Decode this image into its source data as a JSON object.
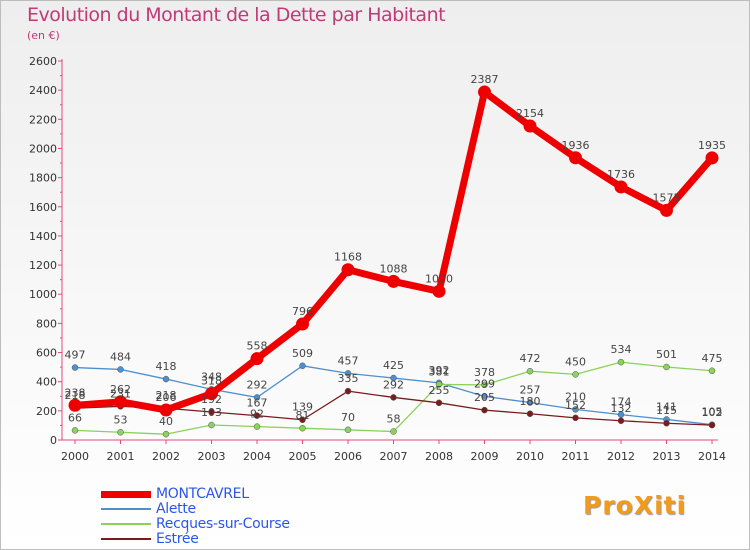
{
  "title": "Evolution du Montant de la Dette par Habitant",
  "subtitle": "(en €)",
  "logo": "ProXiti",
  "chart_data": {
    "type": "line",
    "categories": [
      "2000",
      "2001",
      "2002",
      "2003",
      "2004",
      "2005",
      "2006",
      "2007",
      "2008",
      "2009",
      "2010",
      "2011",
      "2012",
      "2013",
      "2014"
    ],
    "ylim": [
      0,
      2600
    ],
    "yticks": [
      0,
      200,
      400,
      600,
      800,
      1000,
      1200,
      1400,
      1600,
      1800,
      2000,
      2200,
      2400,
      2600
    ],
    "grid": false,
    "legend_position": "bottom-left",
    "series": [
      {
        "name": "MONTCAVREL",
        "color": "#ee0000",
        "emphasis": true,
        "values": [
          238,
          262,
          206,
          318,
          558,
          796,
          1168,
          1088,
          1020,
          2387,
          2154,
          1936,
          1736,
          1575,
          1935
        ]
      },
      {
        "name": "Alette",
        "color": "#4f8fcc",
        "values": [
          497,
          484,
          418,
          348,
          292,
          509,
          457,
          425,
          392,
          299,
          257,
          210,
          174,
          141,
          105
        ]
      },
      {
        "name": "Recques-sur-Course",
        "color": "#8ad25a",
        "values": [
          66,
          53,
          40,
          103,
          92,
          81,
          70,
          58,
          381,
          378,
          472,
          450,
          534,
          501,
          475
        ]
      },
      {
        "name": "Estrée",
        "color": "#7a1c1c",
        "values": [
          218,
          231,
          218,
          192,
          167,
          139,
          335,
          292,
          255,
          205,
          180,
          152,
          132,
          115,
          102
        ]
      }
    ]
  }
}
